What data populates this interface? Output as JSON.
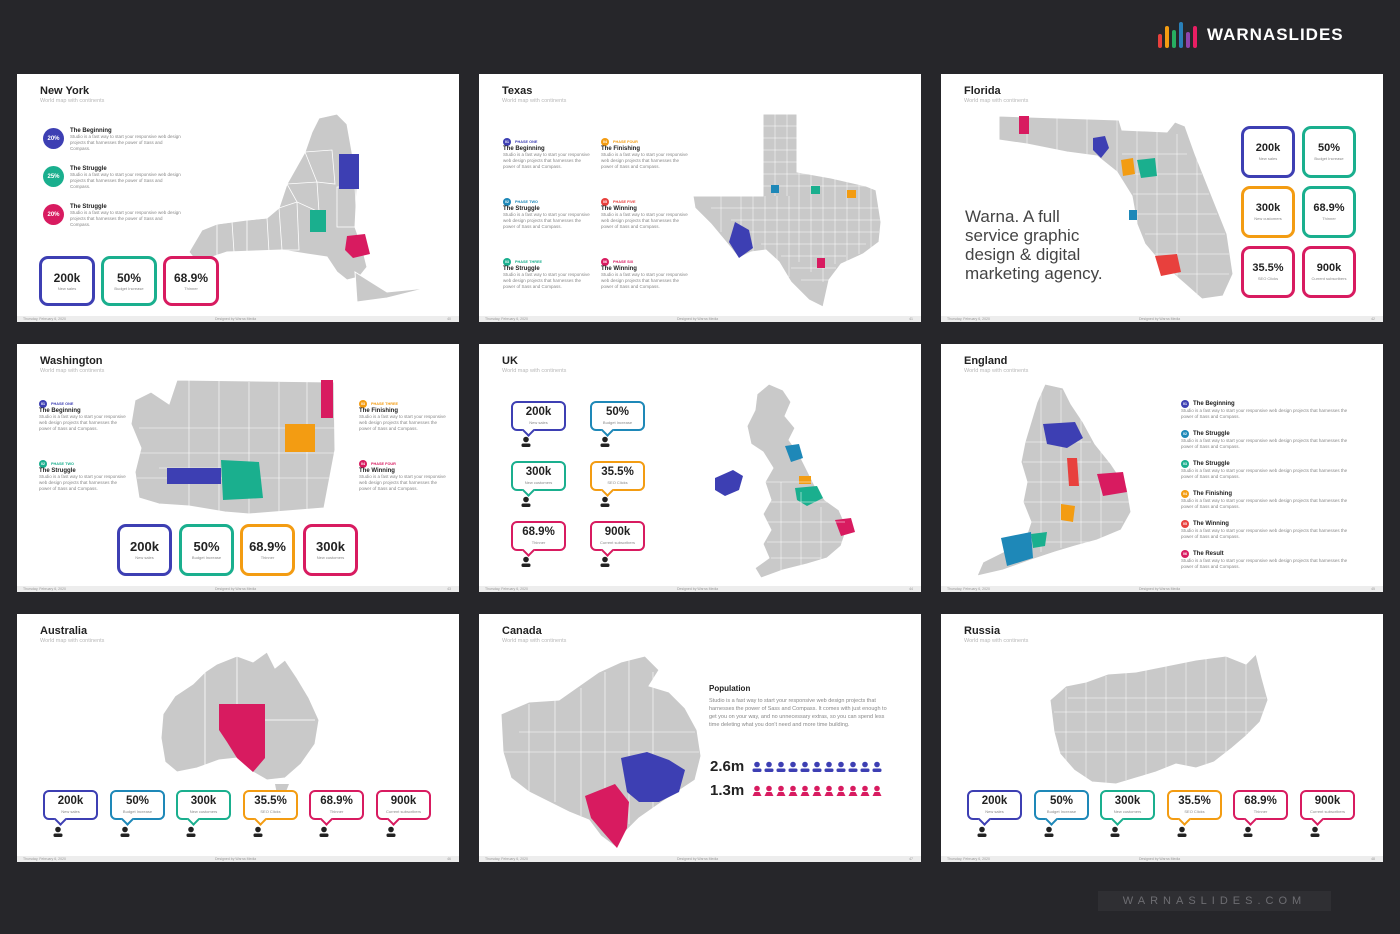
{
  "brand": {
    "name": "WARNASLIDES",
    "bar_colors": [
      "#e8403d",
      "#f39c12",
      "#27ae60",
      "#2980b9",
      "#8e44ad",
      "#e91e63"
    ]
  },
  "footer": {
    "date": "Thursday, February 6, 2020",
    "designer": "Designed by Warna Media"
  },
  "colors": {
    "blue": "#3d3fb3",
    "teal": "#1aaf8e",
    "crimson": "#d81b60",
    "orange": "#f39c12",
    "cyan": "#1e88b8",
    "gray": "#c9c9c9"
  },
  "slides": {
    "newyork": {
      "title": "New York",
      "subtitle": "World map with continents",
      "page": "40",
      "items": [
        {
          "pct": "20%",
          "title": "The Beginning",
          "desc": "Studio is a fast way to start your responsive web design projects that harnesses the power of Sass and Compass."
        },
        {
          "pct": "25%",
          "title": "The Struggle",
          "desc": "Studio is a fast way to start your responsive web design projects that harnesses the power of Sass and Compass."
        },
        {
          "pct": "20%",
          "title": "The Struggle",
          "desc": "Studio is a fast way to start your responsive web design projects that harnesses the power of Sass and Compass."
        }
      ],
      "stats": [
        {
          "value": "200k",
          "label": "New sales"
        },
        {
          "value": "50%",
          "label": "Budget Increase"
        },
        {
          "value": "68.9%",
          "label": "Thinner"
        }
      ]
    },
    "texas": {
      "title": "Texas",
      "subtitle": "World map with continents",
      "page": "41",
      "phases": [
        {
          "num": "01",
          "phase": "PHASE ONE",
          "title": "The Beginning",
          "desc": "Studio is a fast way to start your responsive web design projects that harnesses the power of Sass and Compass."
        },
        {
          "num": "02",
          "phase": "PHASE TWO",
          "title": "The Struggle",
          "desc": "Studio is a fast way to start your responsive web design projects that harnesses the power of Sass and Compass."
        },
        {
          "num": "03",
          "phase": "PHASE THREE",
          "title": "The Struggle",
          "desc": "Studio is a fast way to start your responsive web design projects that harnesses the power of Sass and Compass."
        },
        {
          "num": "04",
          "phase": "PHASE FOUR",
          "title": "The Finishing",
          "desc": "Studio is a fast way to start your responsive web design projects that harnesses the power of Sass and Compass."
        },
        {
          "num": "05",
          "phase": "PHASE FIVE",
          "title": "The Winning",
          "desc": "Studio is a fast way to start your responsive web design projects that harnesses the power of Sass and Compass."
        },
        {
          "num": "06",
          "phase": "PHASE SIX",
          "title": "The Winning",
          "desc": "Studio is a fast way to start your responsive web design projects that harnesses the power of Sass and Compass."
        }
      ]
    },
    "florida": {
      "title": "Florida",
      "subtitle": "World map with continents",
      "page": "42",
      "tagline": [
        "Warna. A full",
        "service graphic",
        "design & digital",
        "marketing agency."
      ],
      "stats": [
        {
          "value": "200k",
          "label": "New sales"
        },
        {
          "value": "50%",
          "label": "Budget Increase"
        },
        {
          "value": "300k",
          "label": "New customers"
        },
        {
          "value": "68.9%",
          "label": "Thinner"
        },
        {
          "value": "35.5%",
          "label": "SEO Clicks"
        },
        {
          "value": "900k",
          "label": "Current subscribers"
        }
      ]
    },
    "washington": {
      "title": "Washington",
      "subtitle": "World map with continents",
      "page": "43",
      "phases": [
        {
          "num": "01",
          "phase": "PHASE ONE",
          "title": "The Beginning",
          "desc": "Studio is a fast way to start your responsive web design projects that harnesses the power of Sass and Compass."
        },
        {
          "num": "02",
          "phase": "PHASE TWO",
          "title": "The Struggle",
          "desc": "Studio is a fast way to start your responsive web design projects that harnesses the power of Sass and Compass."
        },
        {
          "num": "03",
          "phase": "PHASE THREE",
          "title": "The Finishing",
          "desc": "Studio is a fast way to start your responsive web design projects that harnesses the power of Sass and Compass."
        },
        {
          "num": "04",
          "phase": "PHASE FOUR",
          "title": "The Winning",
          "desc": "Studio is a fast way to start your responsive web design projects that harnesses the power of Sass and Compass."
        }
      ],
      "stats": [
        {
          "value": "200k",
          "label": "New sales"
        },
        {
          "value": "50%",
          "label": "Budget Increase"
        },
        {
          "value": "68.9%",
          "label": "Thinner"
        },
        {
          "value": "300k",
          "label": "New customers"
        }
      ]
    },
    "uk": {
      "title": "UK",
      "subtitle": "World map with continents",
      "page": "44",
      "stats": [
        {
          "value": "200k",
          "label": "New sales"
        },
        {
          "value": "50%",
          "label": "Budget Increase"
        },
        {
          "value": "300k",
          "label": "New customers"
        },
        {
          "value": "35.5%",
          "label": "SEO Clicks"
        },
        {
          "value": "68.9%",
          "label": "Thinner"
        },
        {
          "value": "900k",
          "label": "Current subscribers"
        }
      ]
    },
    "england": {
      "title": "England",
      "subtitle": "World map with continents",
      "page": "45",
      "items": [
        {
          "num": "01",
          "title": "The Beginning",
          "desc": "Studio is a fast way to start your responsive web design projects that harnesses the power of Sass and Compass."
        },
        {
          "num": "02",
          "title": "The Struggle",
          "desc": "Studio is a fast way to start your responsive web design projects that harnesses the power of Sass and Compass."
        },
        {
          "num": "03",
          "title": "The Struggle",
          "desc": "Studio is a fast way to start your responsive web design projects that harnesses the power of Sass and Compass."
        },
        {
          "num": "04",
          "title": "The Finishing",
          "desc": "Studio is a fast way to start your responsive web design projects that harnesses the power of Sass and Compass."
        },
        {
          "num": "05",
          "title": "The Winning",
          "desc": "Studio is a fast way to start your responsive web design projects that harnesses the power of Sass and Compass."
        },
        {
          "num": "06",
          "title": "The Result",
          "desc": "Studio is a fast way to start your responsive web design projects that harnesses the power of Sass and Compass."
        }
      ]
    },
    "australia": {
      "title": "Australia",
      "subtitle": "World map with continents",
      "page": "46",
      "stats": [
        {
          "value": "200k",
          "label": "New sales"
        },
        {
          "value": "50%",
          "label": "Budget Increase"
        },
        {
          "value": "300k",
          "label": "New customers"
        },
        {
          "value": "35.5%",
          "label": "SEO Clicks"
        },
        {
          "value": "68.9%",
          "label": "Thinner"
        },
        {
          "value": "900k",
          "label": "Current subscribers"
        }
      ]
    },
    "canada": {
      "title": "Canada",
      "subtitle": "World map with continents",
      "page": "47",
      "population": {
        "title": "Population",
        "text": "Studio is a fast way to start your responsive web design projects that harnesses the power of Sass and Compass. It comes with just enough to get you on your way, and no unnecessary extras, so you can spend less time deleting what you don't need and more time building.",
        "rows": [
          {
            "value": "2.6m"
          },
          {
            "value": "1.3m"
          }
        ]
      }
    },
    "russia": {
      "title": "Russia",
      "subtitle": "World map with continents",
      "page": "48",
      "stats": [
        {
          "value": "200k",
          "label": "New sales"
        },
        {
          "value": "50%",
          "label": "Budget Increase"
        },
        {
          "value": "300k",
          "label": "New customers"
        },
        {
          "value": "35.5%",
          "label": "SEO Clicks"
        },
        {
          "value": "68.9%",
          "label": "Thinner"
        },
        {
          "value": "900k",
          "label": "Current subscribers"
        }
      ]
    }
  },
  "bottom_site": "WARNASLIDES.COM"
}
